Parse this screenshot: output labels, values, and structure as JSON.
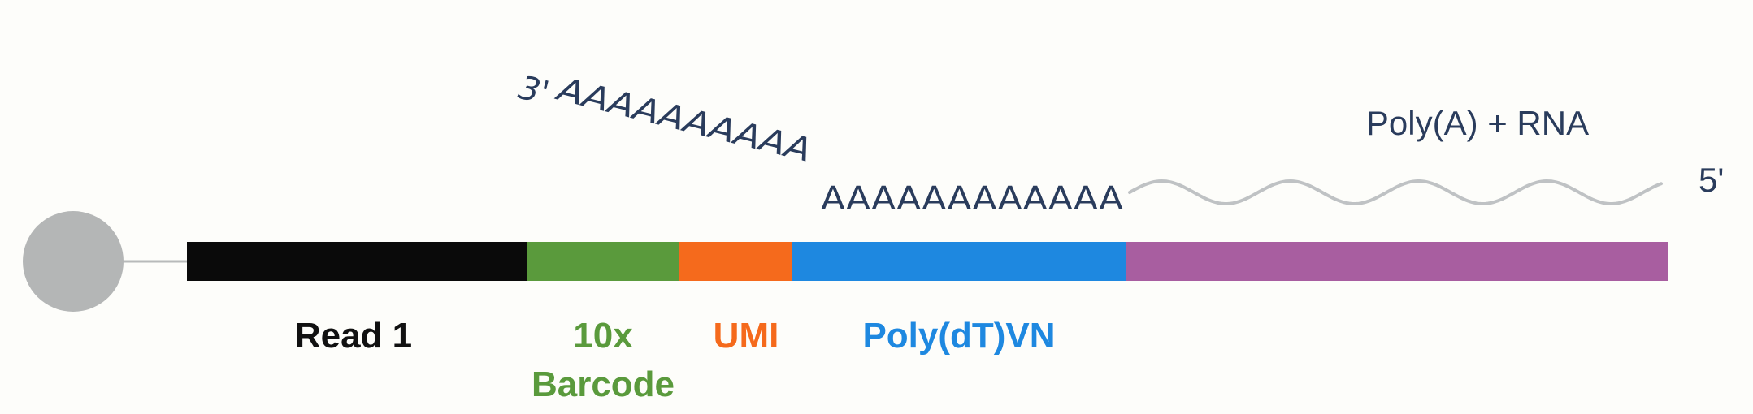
{
  "diagram": {
    "bead": {
      "color": "#b4b6b6"
    },
    "segments": [
      {
        "id": "read1",
        "label": "Read 1",
        "color": "#0a0a0a",
        "label_color": "#111111"
      },
      {
        "id": "barcode",
        "label": "10x",
        "label2": "Barcode",
        "color": "#5a9a3c",
        "label_color": "#5a9a3c"
      },
      {
        "id": "umi",
        "label": "UMI",
        "color": "#f56a1c",
        "label_color": "#f56a1c"
      },
      {
        "id": "polydt",
        "label": "Poly(dT)VN",
        "color": "#1e88e0",
        "label_color": "#1e88e0"
      },
      {
        "id": "rna",
        "label": "",
        "color": "#a85ea0",
        "label_color": "#a85ea0"
      }
    ],
    "rna": {
      "three_prime": "3'",
      "poly_a_diagonal": "AAAAAAAAAA",
      "poly_a_bound": "AAAAAAAAAAAA",
      "label": "Poly(A) + RNA",
      "five_prime": "5'",
      "wave_color": "#bfc2c4"
    }
  }
}
